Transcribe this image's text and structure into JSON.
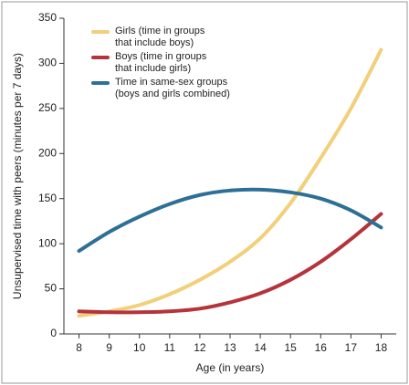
{
  "chart_data": {
    "type": "line",
    "x_label": "Age (in years)",
    "y_label": "Unsupervised time with peers (minutes per 7 days)",
    "x": [
      8,
      9,
      10,
      11,
      12,
      13,
      14,
      15,
      16,
      17,
      18
    ],
    "xlim": [
      7.5,
      18.5
    ],
    "xticks": [
      8,
      9,
      10,
      11,
      12,
      13,
      14,
      15,
      16,
      17,
      18
    ],
    "ylim": [
      0,
      350
    ],
    "yticks": [
      0,
      50,
      100,
      150,
      200,
      250,
      300,
      350
    ],
    "legend": "upper left",
    "series": [
      {
        "name": "Girls (time in groups\nthat include boys)",
        "color": "#f2cf7a",
        "values": [
          20,
          25,
          32,
          44,
          60,
          80,
          106,
          145,
          195,
          250,
          315
        ]
      },
      {
        "name": "Boys (time in groups\nthat include girls)",
        "color": "#b5333a",
        "values": [
          25,
          24,
          24,
          25,
          28,
          35,
          45,
          60,
          80,
          105,
          133
        ]
      },
      {
        "name": "Time in same-sex groups\n(boys and girls combined)",
        "color": "#2e6f96",
        "values": [
          92,
          113,
          130,
          144,
          154,
          159,
          160,
          157,
          150,
          137,
          118
        ]
      }
    ]
  }
}
